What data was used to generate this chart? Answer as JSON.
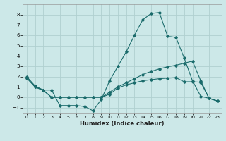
{
  "title": "",
  "xlabel": "Humidex (Indice chaleur)",
  "xlim": [
    -0.5,
    23.5
  ],
  "ylim": [
    -1.5,
    9.0
  ],
  "yticks": [
    -1,
    0,
    1,
    2,
    3,
    4,
    5,
    6,
    7,
    8
  ],
  "xticks": [
    0,
    1,
    2,
    3,
    4,
    5,
    6,
    7,
    8,
    9,
    10,
    11,
    12,
    13,
    14,
    15,
    16,
    17,
    18,
    19,
    20,
    21,
    22,
    23
  ],
  "background_color": "#cce8e8",
  "grid_color": "#b0d0d0",
  "line_color": "#1a6b6b",
  "line1_x": [
    0,
    1,
    2,
    3,
    4,
    5,
    6,
    7,
    8,
    9,
    10,
    11,
    12,
    13,
    14,
    15,
    16,
    17,
    18,
    19,
    20,
    21,
    22,
    23
  ],
  "line1_y": [
    2.0,
    1.1,
    0.7,
    0.7,
    -0.8,
    -0.8,
    -0.8,
    -0.9,
    -1.3,
    -0.2,
    1.6,
    3.0,
    4.4,
    6.0,
    7.5,
    8.1,
    8.2,
    5.9,
    5.8,
    3.8,
    1.6,
    0.1,
    -0.1,
    -0.35
  ],
  "line2_x": [
    0,
    1,
    2,
    3,
    4,
    5,
    6,
    7,
    8,
    9,
    10,
    11,
    12,
    13,
    14,
    15,
    16,
    17,
    18,
    19,
    20,
    21,
    22,
    23
  ],
  "line2_y": [
    1.9,
    1.0,
    0.7,
    0.0,
    0.0,
    0.0,
    0.0,
    0.0,
    0.0,
    0.0,
    0.5,
    1.0,
    1.4,
    1.8,
    2.2,
    2.5,
    2.75,
    2.95,
    3.1,
    3.3,
    3.5,
    1.6,
    -0.1,
    -0.35
  ],
  "line3_x": [
    0,
    1,
    2,
    3,
    4,
    5,
    6,
    7,
    8,
    9,
    10,
    11,
    12,
    13,
    14,
    15,
    16,
    17,
    18,
    19,
    20,
    21,
    22,
    23
  ],
  "line3_y": [
    1.85,
    1.0,
    0.65,
    0.0,
    0.0,
    0.0,
    0.0,
    0.0,
    0.0,
    0.0,
    0.3,
    0.9,
    1.2,
    1.4,
    1.6,
    1.7,
    1.8,
    1.85,
    1.9,
    1.5,
    1.5,
    1.45,
    -0.1,
    -0.35
  ]
}
